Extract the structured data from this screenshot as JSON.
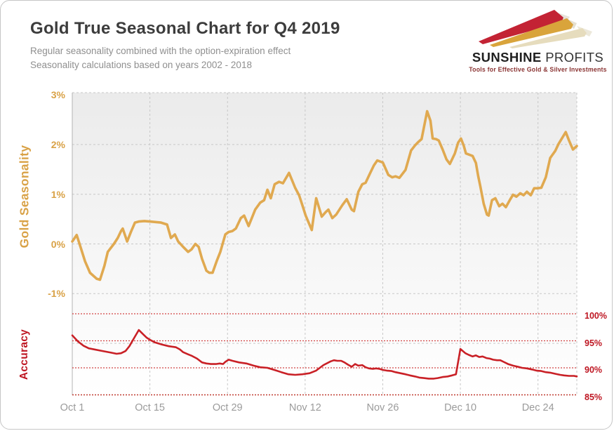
{
  "header": {
    "title": "Gold True Seasonal Chart for Q4 2019",
    "subtitle_line1": "Regular seasonality combined with the option-expiration effect",
    "subtitle_line2": "Seasonality calculations based on years 2002 - 2018"
  },
  "logo": {
    "name_primary": "SUNSHINE",
    "name_secondary": "PROFITS",
    "tagline": "Tools for Effective Gold & Silver Investments",
    "arrow_colors": [
      "#C32334",
      "#D9A43B",
      "#E6DCBD"
    ]
  },
  "colors": {
    "gold_line": "#E0A950",
    "gold_labels": "#D9A247",
    "accuracy_line": "#C92026",
    "accuracy_labels": "#BE1622",
    "gridline_gray": "#c7c7c7",
    "accuracy_guide_red": "#d24545",
    "plot_bg_top": "#ebebeb",
    "plot_bg_bottom": "#ffffff",
    "title_text": "#3c3c3c",
    "subtitle_text": "#8f8f8f",
    "date_labels": "#9b9b9b"
  },
  "chart_data": {
    "type": "line",
    "title": "Gold True Seasonal Chart for Q4 2019",
    "legend": "none",
    "grid": "on",
    "x_axis": {
      "unit": "date (Q4: Oct 1 - Dec 31, day offset 0-91)",
      "range_days": [
        0,
        91
      ],
      "ticks": [
        {
          "day": 0,
          "label": "Oct 1"
        },
        {
          "day": 14,
          "label": "Oct 15"
        },
        {
          "day": 28,
          "label": "Oct 29"
        },
        {
          "day": 42,
          "label": "Nov 12"
        },
        {
          "day": 56,
          "label": "Nov 26"
        },
        {
          "day": 70,
          "label": "Dec 10"
        },
        {
          "day": 84,
          "label": "Dec 24"
        }
      ]
    },
    "left_axis": {
      "title": "Gold Seasonality",
      "unit": "%",
      "range": [
        -3,
        3
      ],
      "ticks": [
        {
          "value": 3,
          "label": "3%"
        },
        {
          "value": 2,
          "label": "2%"
        },
        {
          "value": 1,
          "label": "1%"
        },
        {
          "value": 0,
          "label": "0%"
        },
        {
          "value": -1,
          "label": "-1%"
        }
      ]
    },
    "right_axis": {
      "title": "Accuracy",
      "unit": "%",
      "range_visible": [
        85,
        100
      ],
      "ticks": [
        {
          "value": 100,
          "label": "100%"
        },
        {
          "value": 95,
          "label": "95%"
        },
        {
          "value": 90,
          "label": "90%"
        },
        {
          "value": 85,
          "label": "85%"
        }
      ]
    },
    "gridlines": {
      "horizontal_gold_values": [
        2,
        1,
        0,
        -1,
        -2
      ],
      "vertical_tick_days": [
        14,
        28,
        42,
        56,
        70,
        84
      ],
      "accuracy_guide_values": [
        100,
        95,
        90,
        85
      ]
    },
    "series": [
      {
        "name": "Gold Seasonality",
        "axis": "left",
        "color": "#E0A950",
        "width": 3.6,
        "points": [
          [
            0,
            0.05
          ],
          [
            0.8,
            0.18
          ],
          [
            1.6,
            -0.1
          ],
          [
            2.3,
            -0.35
          ],
          [
            3.2,
            -0.58
          ],
          [
            4.4,
            -0.7
          ],
          [
            5,
            -0.72
          ],
          [
            5.8,
            -0.44
          ],
          [
            6.4,
            -0.16
          ],
          [
            7.5,
            0
          ],
          [
            8.2,
            0.12
          ],
          [
            8.8,
            0.26
          ],
          [
            9.1,
            0.31
          ],
          [
            9.9,
            0.05
          ],
          [
            10.6,
            0.25
          ],
          [
            11.3,
            0.43
          ],
          [
            12,
            0.45
          ],
          [
            13,
            0.46
          ],
          [
            14,
            0.45
          ],
          [
            15,
            0.44
          ],
          [
            16,
            0.43
          ],
          [
            17.1,
            0.39
          ],
          [
            17.8,
            0.12
          ],
          [
            18.5,
            0.19
          ],
          [
            19.1,
            0.05
          ],
          [
            20,
            -0.06
          ],
          [
            20.9,
            -0.16
          ],
          [
            21.5,
            -0.11
          ],
          [
            22.2,
            0
          ],
          [
            22.8,
            -0.06
          ],
          [
            23.4,
            -0.3
          ],
          [
            24.2,
            -0.54
          ],
          [
            24.7,
            -0.58
          ],
          [
            25.3,
            -0.58
          ],
          [
            26.1,
            -0.33
          ],
          [
            26.7,
            -0.16
          ],
          [
            27.6,
            0.19
          ],
          [
            28.2,
            0.24
          ],
          [
            28.9,
            0.26
          ],
          [
            29.5,
            0.31
          ],
          [
            30.4,
            0.52
          ],
          [
            31,
            0.57
          ],
          [
            31.8,
            0.36
          ],
          [
            33,
            0.69
          ],
          [
            33.9,
            0.83
          ],
          [
            34.6,
            0.88
          ],
          [
            35.2,
            1.09
          ],
          [
            35.8,
            0.92
          ],
          [
            36.5,
            1.2
          ],
          [
            37.3,
            1.25
          ],
          [
            38,
            1.22
          ],
          [
            39.1,
            1.43
          ],
          [
            40.2,
            1.13
          ],
          [
            40.9,
            0.98
          ],
          [
            41.5,
            0.78
          ],
          [
            42.1,
            0.57
          ],
          [
            43.2,
            0.28
          ],
          [
            44,
            0.92
          ],
          [
            45,
            0.55
          ],
          [
            45.7,
            0.64
          ],
          [
            46.2,
            0.69
          ],
          [
            46.9,
            0.52
          ],
          [
            47.6,
            0.59
          ],
          [
            48.7,
            0.78
          ],
          [
            49.5,
            0.9
          ],
          [
            50.4,
            0.69
          ],
          [
            50.8,
            0.66
          ],
          [
            51.6,
            1.05
          ],
          [
            52.3,
            1.2
          ],
          [
            52.9,
            1.23
          ],
          [
            53.7,
            1.42
          ],
          [
            54.4,
            1.58
          ],
          [
            55,
            1.68
          ],
          [
            56,
            1.64
          ],
          [
            57,
            1.39
          ],
          [
            57.7,
            1.34
          ],
          [
            58.3,
            1.36
          ],
          [
            59,
            1.33
          ],
          [
            60.1,
            1.49
          ],
          [
            61.1,
            1.88
          ],
          [
            61.8,
            1.98
          ],
          [
            62.4,
            2.05
          ],
          [
            63,
            2.11
          ],
          [
            64,
            2.67
          ],
          [
            64.6,
            2.48
          ],
          [
            65,
            2.12
          ],
          [
            65.6,
            2.11
          ],
          [
            66.1,
            2.08
          ],
          [
            66.8,
            1.9
          ],
          [
            67.5,
            1.7
          ],
          [
            68.1,
            1.61
          ],
          [
            69,
            1.82
          ],
          [
            69.6,
            2.04
          ],
          [
            70.1,
            2.12
          ],
          [
            70.6,
            1.98
          ],
          [
            71,
            1.82
          ],
          [
            71.5,
            1.8
          ],
          [
            72.2,
            1.77
          ],
          [
            72.8,
            1.63
          ],
          [
            73.2,
            1.37
          ],
          [
            73.6,
            1.16
          ],
          [
            74.2,
            0.81
          ],
          [
            74.8,
            0.59
          ],
          [
            75.1,
            0.57
          ],
          [
            75.7,
            0.88
          ],
          [
            76.3,
            0.92
          ],
          [
            77,
            0.76
          ],
          [
            77.6,
            0.81
          ],
          [
            78.2,
            0.74
          ],
          [
            78.9,
            0.88
          ],
          [
            79.5,
            0.99
          ],
          [
            80.1,
            0.95
          ],
          [
            80.8,
            1.02
          ],
          [
            81.4,
            0.98
          ],
          [
            82,
            1.05
          ],
          [
            82.7,
            0.98
          ],
          [
            83.3,
            1.12
          ],
          [
            83.9,
            1.12
          ],
          [
            84.6,
            1.13
          ],
          [
            85.4,
            1.34
          ],
          [
            86.2,
            1.73
          ],
          [
            87.1,
            1.87
          ],
          [
            87.7,
            2.01
          ],
          [
            89,
            2.25
          ],
          [
            89.6,
            2.08
          ],
          [
            90.3,
            1.9
          ],
          [
            91,
            1.97
          ]
        ]
      },
      {
        "name": "Accuracy",
        "axis": "right",
        "color": "#C92026",
        "width": 2.6,
        "points": [
          [
            0,
            96
          ],
          [
            1,
            94.9
          ],
          [
            2,
            94.1
          ],
          [
            3,
            93.6
          ],
          [
            4,
            93.4
          ],
          [
            5,
            93.2
          ],
          [
            6,
            93
          ],
          [
            7,
            92.8
          ],
          [
            8,
            92.6
          ],
          [
            8.8,
            92.7
          ],
          [
            9.6,
            93.1
          ],
          [
            10.3,
            94
          ],
          [
            11.2,
            95.6
          ],
          [
            12,
            97
          ],
          [
            12.8,
            96.2
          ],
          [
            13.4,
            95.6
          ],
          [
            14,
            95.2
          ],
          [
            14.9,
            94.7
          ],
          [
            16.2,
            94.3
          ],
          [
            17.4,
            94
          ],
          [
            18.7,
            93.8
          ],
          [
            19.4,
            93.4
          ],
          [
            20,
            92.9
          ],
          [
            20.9,
            92.5
          ],
          [
            21.6,
            92.2
          ],
          [
            22.5,
            91.7
          ],
          [
            23.4,
            91
          ],
          [
            24.2,
            90.8
          ],
          [
            25,
            90.7
          ],
          [
            25.9,
            90.7
          ],
          [
            26.6,
            90.8
          ],
          [
            27.2,
            90.7
          ],
          [
            27.6,
            91.1
          ],
          [
            28.2,
            91.5
          ],
          [
            28.9,
            91.3
          ],
          [
            30.1,
            91
          ],
          [
            31.4,
            90.8
          ],
          [
            32.7,
            90.4
          ],
          [
            33.9,
            90.1
          ],
          [
            35.2,
            90
          ],
          [
            36.5,
            89.6
          ],
          [
            37.7,
            89.2
          ],
          [
            39,
            88.8
          ],
          [
            40.2,
            88.7
          ],
          [
            41.5,
            88.8
          ],
          [
            42.8,
            89
          ],
          [
            44,
            89.5
          ],
          [
            45.3,
            90.5
          ],
          [
            46.6,
            91.2
          ],
          [
            47.2,
            91.4
          ],
          [
            47.8,
            91.3
          ],
          [
            48.5,
            91.3
          ],
          [
            49.1,
            91
          ],
          [
            49.7,
            90.6
          ],
          [
            50.4,
            90.2
          ],
          [
            51,
            90.7
          ],
          [
            51.6,
            90.4
          ],
          [
            52.3,
            90.5
          ],
          [
            52.9,
            90.1
          ],
          [
            53.5,
            89.9
          ],
          [
            54.2,
            89.8
          ],
          [
            54.8,
            89.9
          ],
          [
            55.4,
            89.8
          ],
          [
            56.1,
            89.6
          ],
          [
            56.7,
            89.5
          ],
          [
            57.6,
            89.4
          ],
          [
            58.3,
            89.2
          ],
          [
            59.2,
            89
          ],
          [
            60.1,
            88.8
          ],
          [
            60.9,
            88.6
          ],
          [
            61.8,
            88.4
          ],
          [
            62.6,
            88.2
          ],
          [
            63.4,
            88.1
          ],
          [
            64.3,
            88
          ],
          [
            65.2,
            88
          ],
          [
            65.9,
            88.1
          ],
          [
            66.8,
            88.3
          ],
          [
            67.7,
            88.4
          ],
          [
            68.5,
            88.6
          ],
          [
            69.2,
            88.8
          ],
          [
            70,
            93.5
          ],
          [
            70.9,
            92.7
          ],
          [
            71.5,
            92.4
          ],
          [
            72.2,
            92.1
          ],
          [
            72.8,
            92.3
          ],
          [
            73.4,
            92
          ],
          [
            74,
            92.1
          ],
          [
            74.7,
            91.8
          ],
          [
            75.3,
            91.7
          ],
          [
            75.9,
            91.5
          ],
          [
            76.6,
            91.4
          ],
          [
            77.2,
            91.4
          ],
          [
            77.8,
            91.1
          ],
          [
            78.6,
            90.7
          ],
          [
            79.5,
            90.4
          ],
          [
            80.4,
            90.2
          ],
          [
            81.1,
            90
          ],
          [
            82,
            89.9
          ],
          [
            82.9,
            89.7
          ],
          [
            83.7,
            89.5
          ],
          [
            84.6,
            89.4
          ],
          [
            85.4,
            89.2
          ],
          [
            86.2,
            89.1
          ],
          [
            87.1,
            88.9
          ],
          [
            88,
            88.7
          ],
          [
            88.7,
            88.6
          ],
          [
            89.6,
            88.5
          ],
          [
            90.5,
            88.5
          ],
          [
            91,
            88.4
          ]
        ]
      }
    ]
  }
}
